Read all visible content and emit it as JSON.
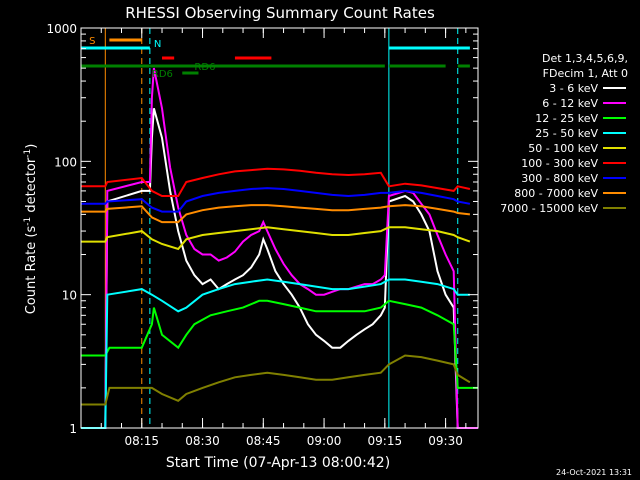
{
  "chart_data": {
    "type": "line",
    "title": "RHESSI Observing Summary Count Rates",
    "xlabel": "Start Time (07-Apr-13 08:00:42)",
    "ylabel_main": "Count Rate (s",
    "ylabel_sup1": "-1",
    "ylabel_mid": " detector",
    "ylabel_sup2": "-1",
    "ylabel_end": ")",
    "yscale": "log",
    "ylim": [
      1,
      1000
    ],
    "xlim_minutes": [
      0,
      98
    ],
    "x_ticks": [
      {
        "m": 15,
        "label": "08:15"
      },
      {
        "m": 30,
        "label": "08:30"
      },
      {
        "m": 45,
        "label": "08:45"
      },
      {
        "m": 60,
        "label": "09:00"
      },
      {
        "m": 75,
        "label": "09:15"
      },
      {
        "m": 90,
        "label": "09:30"
      }
    ],
    "y_ticks": [
      {
        "v": 1,
        "label": "1"
      },
      {
        "v": 10,
        "label": "10"
      },
      {
        "v": 100,
        "label": "100"
      },
      {
        "v": 1000,
        "label": "1000"
      }
    ],
    "legend_header": [
      "Det 1,3,4,5,6,9,",
      "FDecim 1, Att 0"
    ],
    "series": [
      {
        "name": "3 - 6 keV",
        "color": "#ffffff",
        "points": [
          [
            0,
            1
          ],
          [
            6,
            1
          ],
          [
            6.5,
            50
          ],
          [
            15,
            60
          ],
          [
            17,
            60
          ],
          [
            17.5,
            150
          ],
          [
            18,
            250
          ],
          [
            20,
            150
          ],
          [
            22,
            60
          ],
          [
            24,
            30
          ],
          [
            26,
            18
          ],
          [
            28,
            14
          ],
          [
            30,
            12
          ],
          [
            32,
            13
          ],
          [
            34,
            11
          ],
          [
            36,
            12
          ],
          [
            38,
            13
          ],
          [
            40,
            14
          ],
          [
            42,
            16
          ],
          [
            44,
            20
          ],
          [
            45,
            26
          ],
          [
            46,
            22
          ],
          [
            48,
            15
          ],
          [
            50,
            12
          ],
          [
            52,
            10
          ],
          [
            54,
            8
          ],
          [
            56,
            6
          ],
          [
            58,
            5
          ],
          [
            60,
            4.5
          ],
          [
            62,
            4
          ],
          [
            64,
            4
          ],
          [
            66,
            4.5
          ],
          [
            68,
            5
          ],
          [
            70,
            5.5
          ],
          [
            72,
            6
          ],
          [
            74,
            7
          ],
          [
            75,
            8
          ],
          [
            76,
            50
          ],
          [
            80,
            55
          ],
          [
            82,
            50
          ],
          [
            84,
            40
          ],
          [
            86,
            30
          ],
          [
            88,
            15
          ],
          [
            90,
            10
          ],
          [
            92,
            8
          ],
          [
            93,
            1
          ],
          [
            98,
            1
          ]
        ]
      },
      {
        "name": "6 - 12 keV",
        "color": "#ff00ff",
        "points": [
          [
            0,
            1
          ],
          [
            6,
            1
          ],
          [
            6.5,
            60
          ],
          [
            15,
            70
          ],
          [
            17,
            70
          ],
          [
            17.5,
            300
          ],
          [
            18,
            500
          ],
          [
            20,
            250
          ],
          [
            22,
            90
          ],
          [
            24,
            45
          ],
          [
            26,
            28
          ],
          [
            28,
            22
          ],
          [
            30,
            20
          ],
          [
            32,
            20
          ],
          [
            34,
            18
          ],
          [
            36,
            19
          ],
          [
            38,
            21
          ],
          [
            40,
            25
          ],
          [
            42,
            28
          ],
          [
            44,
            30
          ],
          [
            45,
            35
          ],
          [
            46,
            30
          ],
          [
            48,
            22
          ],
          [
            50,
            17
          ],
          [
            52,
            14
          ],
          [
            54,
            12
          ],
          [
            56,
            11
          ],
          [
            58,
            10
          ],
          [
            60,
            10
          ],
          [
            62,
            10.5
          ],
          [
            64,
            11
          ],
          [
            66,
            11
          ],
          [
            68,
            11.5
          ],
          [
            70,
            12
          ],
          [
            72,
            12
          ],
          [
            74,
            13
          ],
          [
            75,
            14
          ],
          [
            76,
            55
          ],
          [
            80,
            60
          ],
          [
            82,
            58
          ],
          [
            84,
            48
          ],
          [
            86,
            40
          ],
          [
            88,
            28
          ],
          [
            90,
            20
          ],
          [
            92,
            15
          ],
          [
            93,
            1
          ],
          [
            98,
            1
          ]
        ]
      },
      {
        "name": "12 - 25 keV",
        "color": "#00ff00",
        "points": [
          [
            0,
            3.5
          ],
          [
            6,
            3.5
          ],
          [
            7,
            4
          ],
          [
            15,
            4
          ],
          [
            17.5,
            6
          ],
          [
            18,
            8
          ],
          [
            20,
            5
          ],
          [
            24,
            4
          ],
          [
            26,
            5
          ],
          [
            28,
            6
          ],
          [
            32,
            7
          ],
          [
            36,
            7.5
          ],
          [
            40,
            8
          ],
          [
            44,
            9
          ],
          [
            46,
            9
          ],
          [
            50,
            8.5
          ],
          [
            54,
            8
          ],
          [
            58,
            7.5
          ],
          [
            62,
            7.5
          ],
          [
            66,
            7.5
          ],
          [
            70,
            7.5
          ],
          [
            74,
            8
          ],
          [
            76,
            9
          ],
          [
            80,
            8.5
          ],
          [
            84,
            8
          ],
          [
            88,
            7
          ],
          [
            92,
            6
          ],
          [
            93,
            2
          ],
          [
            98,
            2
          ]
        ]
      },
      {
        "name": "25 - 50 keV",
        "color": "#00ffff",
        "points": [
          [
            0,
            1
          ],
          [
            6,
            1
          ],
          [
            6.5,
            10
          ],
          [
            15,
            11
          ],
          [
            17.5,
            10
          ],
          [
            20,
            9
          ],
          [
            24,
            7.5
          ],
          [
            26,
            8
          ],
          [
            30,
            10
          ],
          [
            34,
            11
          ],
          [
            38,
            12
          ],
          [
            42,
            12.5
          ],
          [
            46,
            13
          ],
          [
            50,
            12.5
          ],
          [
            54,
            12
          ],
          [
            58,
            11.5
          ],
          [
            62,
            11
          ],
          [
            66,
            11
          ],
          [
            70,
            11.5
          ],
          [
            74,
            12
          ],
          [
            76,
            13
          ],
          [
            80,
            13
          ],
          [
            84,
            12.5
          ],
          [
            88,
            12
          ],
          [
            92,
            11
          ],
          [
            93,
            10
          ],
          [
            96,
            10
          ]
        ]
      },
      {
        "name": "50 - 100 keV",
        "color": "#e0e000",
        "points": [
          [
            0,
            25
          ],
          [
            6,
            25
          ],
          [
            6.5,
            27
          ],
          [
            15,
            30
          ],
          [
            17.5,
            26
          ],
          [
            20,
            24
          ],
          [
            24,
            22
          ],
          [
            26,
            26
          ],
          [
            30,
            28
          ],
          [
            34,
            29
          ],
          [
            38,
            30
          ],
          [
            42,
            31
          ],
          [
            46,
            32
          ],
          [
            50,
            31
          ],
          [
            54,
            30
          ],
          [
            58,
            29
          ],
          [
            62,
            28
          ],
          [
            66,
            28
          ],
          [
            70,
            29
          ],
          [
            74,
            30
          ],
          [
            76,
            32
          ],
          [
            80,
            32
          ],
          [
            84,
            31
          ],
          [
            88,
            30
          ],
          [
            92,
            28
          ],
          [
            93,
            27
          ],
          [
            96,
            25
          ]
        ]
      },
      {
        "name": "100 - 300 keV",
        "color": "#ff0000",
        "points": [
          [
            0,
            65
          ],
          [
            6,
            65
          ],
          [
            6.5,
            70
          ],
          [
            15,
            75
          ],
          [
            17.5,
            60
          ],
          [
            20,
            55
          ],
          [
            24,
            55
          ],
          [
            26,
            70
          ],
          [
            30,
            75
          ],
          [
            34,
            80
          ],
          [
            38,
            84
          ],
          [
            42,
            86
          ],
          [
            46,
            88
          ],
          [
            50,
            87
          ],
          [
            54,
            85
          ],
          [
            58,
            82
          ],
          [
            62,
            80
          ],
          [
            66,
            79
          ],
          [
            70,
            80
          ],
          [
            74,
            82
          ],
          [
            76,
            65
          ],
          [
            80,
            68
          ],
          [
            84,
            66
          ],
          [
            88,
            63
          ],
          [
            92,
            60
          ],
          [
            93,
            65
          ],
          [
            96,
            62
          ]
        ]
      },
      {
        "name": "300 - 800 keV",
        "color": "#0000ff",
        "points": [
          [
            0,
            48
          ],
          [
            6,
            48
          ],
          [
            6.5,
            50
          ],
          [
            15,
            52
          ],
          [
            17.5,
            45
          ],
          [
            20,
            42
          ],
          [
            24,
            42
          ],
          [
            26,
            50
          ],
          [
            30,
            55
          ],
          [
            34,
            58
          ],
          [
            38,
            60
          ],
          [
            42,
            62
          ],
          [
            46,
            63
          ],
          [
            50,
            62
          ],
          [
            54,
            60
          ],
          [
            58,
            58
          ],
          [
            62,
            56
          ],
          [
            66,
            55
          ],
          [
            70,
            56
          ],
          [
            74,
            58
          ],
          [
            76,
            58
          ],
          [
            80,
            60
          ],
          [
            84,
            58
          ],
          [
            88,
            55
          ],
          [
            92,
            52
          ],
          [
            93,
            50
          ],
          [
            96,
            48
          ]
        ]
      },
      {
        "name": "800 - 7000 keV",
        "color": "#ff8c00",
        "points": [
          [
            0,
            42
          ],
          [
            6,
            42
          ],
          [
            6.5,
            44
          ],
          [
            15,
            46
          ],
          [
            17.5,
            38
          ],
          [
            20,
            35
          ],
          [
            24,
            35
          ],
          [
            26,
            40
          ],
          [
            30,
            43
          ],
          [
            34,
            45
          ],
          [
            38,
            46
          ],
          [
            42,
            47
          ],
          [
            46,
            47
          ],
          [
            50,
            46
          ],
          [
            54,
            45
          ],
          [
            58,
            44
          ],
          [
            62,
            43
          ],
          [
            66,
            43
          ],
          [
            70,
            44
          ],
          [
            74,
            45
          ],
          [
            76,
            46
          ],
          [
            80,
            47
          ],
          [
            84,
            46
          ],
          [
            88,
            44
          ],
          [
            92,
            42
          ],
          [
            93,
            41
          ],
          [
            96,
            40
          ]
        ]
      },
      {
        "name": "7000 - 15000 keV",
        "color": "#808000",
        "points": [
          [
            0,
            1.5
          ],
          [
            6,
            1.5
          ],
          [
            7,
            2
          ],
          [
            15,
            2
          ],
          [
            17.5,
            2
          ],
          [
            20,
            1.8
          ],
          [
            24,
            1.6
          ],
          [
            26,
            1.8
          ],
          [
            30,
            2
          ],
          [
            34,
            2.2
          ],
          [
            38,
            2.4
          ],
          [
            42,
            2.5
          ],
          [
            46,
            2.6
          ],
          [
            50,
            2.5
          ],
          [
            54,
            2.4
          ],
          [
            58,
            2.3
          ],
          [
            62,
            2.3
          ],
          [
            66,
            2.4
          ],
          [
            70,
            2.5
          ],
          [
            74,
            2.6
          ],
          [
            76,
            3
          ],
          [
            80,
            3.5
          ],
          [
            84,
            3.4
          ],
          [
            88,
            3.2
          ],
          [
            92,
            3
          ],
          [
            93,
            2.5
          ],
          [
            96,
            2.2
          ]
        ]
      }
    ],
    "flag_bars": [
      {
        "label": "S",
        "color": "#ff8c00",
        "level": "s",
        "segments": [
          [
            7,
            15
          ]
        ]
      },
      {
        "label": "N",
        "color": "#00ffff",
        "level": "n",
        "segments": [
          [
            0,
            17
          ],
          [
            76,
            96
          ]
        ]
      },
      {
        "label": "",
        "color": "#ff0000",
        "level": "red",
        "segments": [
          [
            20,
            23
          ],
          [
            38,
            47
          ]
        ]
      },
      {
        "label": "RD6",
        "color": "#008000",
        "level": "rd6",
        "segments": [
          [
            0,
            17
          ],
          [
            17,
            75
          ],
          [
            76,
            90
          ],
          [
            93,
            96
          ]
        ]
      },
      {
        "label": "RD6",
        "color": "#008000",
        "level": "rd6b",
        "segments": [
          [
            25,
            29
          ]
        ]
      }
    ],
    "vlines": [
      {
        "m": 6,
        "color": "#ff8c00",
        "dash": false
      },
      {
        "m": 15,
        "color": "#ff8c00",
        "dash": true
      },
      {
        "m": 17,
        "color": "#00ffff",
        "dash": true
      },
      {
        "m": 76,
        "color": "#00ffff",
        "dash": false
      },
      {
        "m": 93,
        "color": "#00ffff",
        "dash": true
      }
    ],
    "footer_date": "24-Oct-2021 13:31"
  }
}
